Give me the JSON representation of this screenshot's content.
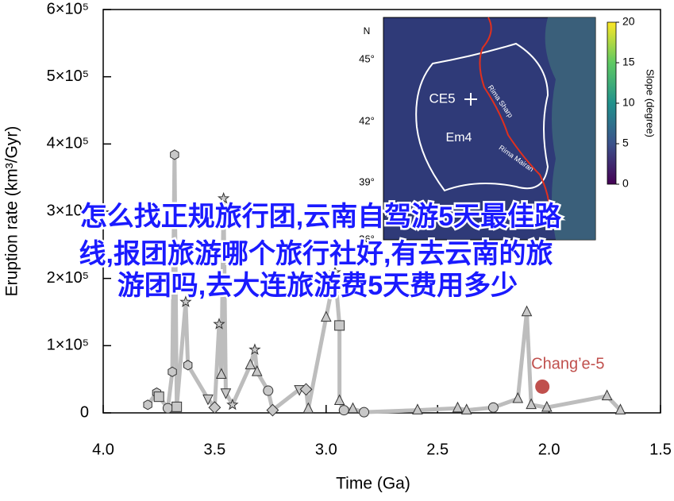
{
  "chart_data": {
    "type": "scatter-line",
    "x_label": "Time (Ga)",
    "y_label": "Eruption rate (km³/Gyr)",
    "xlim": [
      4.0,
      1.5
    ],
    "ylim": [
      0,
      600000
    ],
    "xticks": [
      {
        "value": 4,
        "label": "4.0"
      },
      {
        "value": 3.5,
        "label": "3.5"
      },
      {
        "value": 3,
        "label": "3.0"
      },
      {
        "value": 2.5,
        "label": "2.5"
      },
      {
        "value": 2,
        "label": "2.0"
      },
      {
        "value": 1.5,
        "label": "1.5"
      }
    ],
    "yticks": [
      {
        "value": 0,
        "label": "0"
      },
      {
        "value": 100000,
        "label": "1×10⁵"
      },
      {
        "value": 200000,
        "label": "2×10⁵"
      },
      {
        "value": 300000,
        "label": "3×10⁵"
      },
      {
        "value": 400000,
        "label": "4×10⁵"
      },
      {
        "value": 500000,
        "label": "5×10⁵"
      },
      {
        "value": 600000,
        "label": "6×10⁵"
      }
    ],
    "series": [
      {
        "color": "#bdbdbd",
        "x": [
          3.8,
          3.76,
          3.75,
          3.71,
          3.69,
          3.68,
          3.67,
          3.63,
          3.62,
          3.53,
          3.5,
          3.48,
          3.47,
          3.46,
          3.45,
          3.42,
          3.34,
          3.32,
          3.31,
          3.26,
          3.24,
          3.12,
          3.09,
          3.08,
          3.0,
          2.96,
          2.94,
          2.94,
          2.92,
          2.88,
          2.83,
          2.59,
          2.41,
          2.37,
          2.25,
          2.14,
          2.1,
          2.08,
          2.01,
          1.74,
          1.68
        ],
        "values": [
          12000,
          30000,
          24000,
          7000,
          61000,
          384000,
          9000,
          165000,
          71000,
          21000,
          8000,
          132000,
          57000,
          319000,
          30000,
          12000,
          71000,
          94000,
          61000,
          33000,
          4000,
          35000,
          35000,
          6000,
          142000,
          209000,
          130000,
          18000,
          4000,
          6000,
          1000,
          4000,
          7000,
          4000,
          8000,
          21000,
          150000,
          12000,
          8000,
          25000,
          4000
        ],
        "markers": [
          "hexagon",
          "hexagon",
          "square",
          "circle",
          "hexagon",
          "hexagon",
          "square",
          "star",
          "hexagon",
          "triangle-down",
          "diamond",
          "star",
          "triangle",
          "star",
          "triangle-down",
          "star",
          "triangle",
          "star",
          "triangle",
          "circle",
          "diamond",
          "triangle-down",
          "diamond",
          "triangle",
          "triangle",
          "star",
          "square",
          "triangle",
          "circle",
          "triangle",
          "circle",
          "triangle",
          "triangle",
          "triangle",
          "circle",
          "triangle",
          "triangle",
          "triangle",
          "triangle",
          "triangle",
          "triangle"
        ]
      }
    ],
    "highlight": {
      "name": "Chang’e-5",
      "x": 2.03,
      "y": 39000,
      "color": "#c0504d"
    }
  },
  "inset": {
    "north": "N",
    "lat_labels": [
      "45°",
      "42°",
      "39°",
      "36°"
    ],
    "units": [
      "CE5",
      "Em4"
    ],
    "features": [
      "Rima Sharp",
      "Rima Mairan"
    ],
    "colorbar_label": "Slope (degree)",
    "colorbar_ticks": [
      20,
      15,
      10,
      5,
      0
    ]
  },
  "overlay": {
    "lines": [
      "怎么找正规旅行团,云南自驾游5天最佳路",
      "线,报团旅游哪个旅行社好,有去云南的旅",
      "游团吗,去大连旅游费5天费用多少"
    ]
  }
}
